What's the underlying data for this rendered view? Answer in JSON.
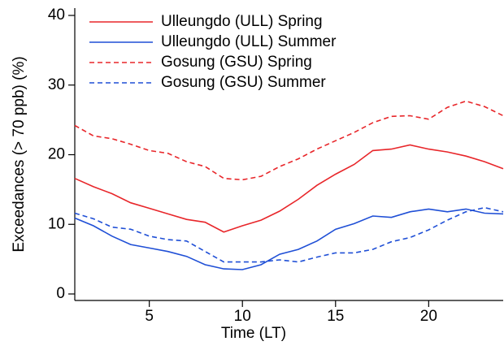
{
  "chart_data": {
    "type": "line",
    "x_label": "Time (LT)",
    "y_label": "Exceedances (> 70 ppb) (%)",
    "x": [
      1,
      2,
      3,
      4,
      5,
      6,
      7,
      8,
      9,
      10,
      11,
      12,
      13,
      14,
      15,
      16,
      17,
      18,
      19,
      20,
      21,
      22,
      23,
      24
    ],
    "series": [
      {
        "name": "Ulleungdo (ULL) Spring",
        "color": "#e8262a",
        "linestyle": "solid",
        "values": [
          16.6,
          15.4,
          14.4,
          13.1,
          12.3,
          11.5,
          10.7,
          10.3,
          8.9,
          9.8,
          10.6,
          11.9,
          13.6,
          15.6,
          17.2,
          18.6,
          20.6,
          20.8,
          21.4,
          20.8,
          20.4,
          19.8,
          19.0,
          18.0
        ]
      },
      {
        "name": "Ulleungdo (ULL) Summer",
        "color": "#1f4fd6",
        "linestyle": "solid",
        "values": [
          10.9,
          9.8,
          8.3,
          7.1,
          6.6,
          6.1,
          5.4,
          4.2,
          3.6,
          3.5,
          4.2,
          5.7,
          6.4,
          7.6,
          9.3,
          10.1,
          11.2,
          11.0,
          11.8,
          12.2,
          11.8,
          12.2,
          11.6,
          11.5
        ]
      },
      {
        "name": "Gosung (GSU) Spring",
        "color": "#e8262a",
        "linestyle": "dashed",
        "values": [
          24.2,
          22.7,
          22.3,
          21.5,
          20.6,
          20.2,
          19.0,
          18.3,
          16.6,
          16.4,
          16.9,
          18.3,
          19.4,
          20.8,
          22.0,
          23.2,
          24.6,
          25.5,
          25.6,
          25.1,
          26.8,
          27.7,
          26.9,
          25.6
        ]
      },
      {
        "name": "Gosung (GSU) Summer",
        "color": "#1f4fd6",
        "linestyle": "dashed",
        "values": [
          11.6,
          10.8,
          9.6,
          9.3,
          8.3,
          7.8,
          7.6,
          6.1,
          4.6,
          4.6,
          4.6,
          4.9,
          4.6,
          5.3,
          5.9,
          5.9,
          6.4,
          7.5,
          8.1,
          9.2,
          10.6,
          11.8,
          12.4,
          11.8
        ]
      }
    ],
    "xlim": [
      1,
      24
    ],
    "xticks": [
      5,
      10,
      15,
      20
    ],
    "ylim": [
      0,
      40
    ],
    "yticks": [
      0,
      10,
      20,
      30,
      40
    ],
    "legend": "top-left"
  }
}
